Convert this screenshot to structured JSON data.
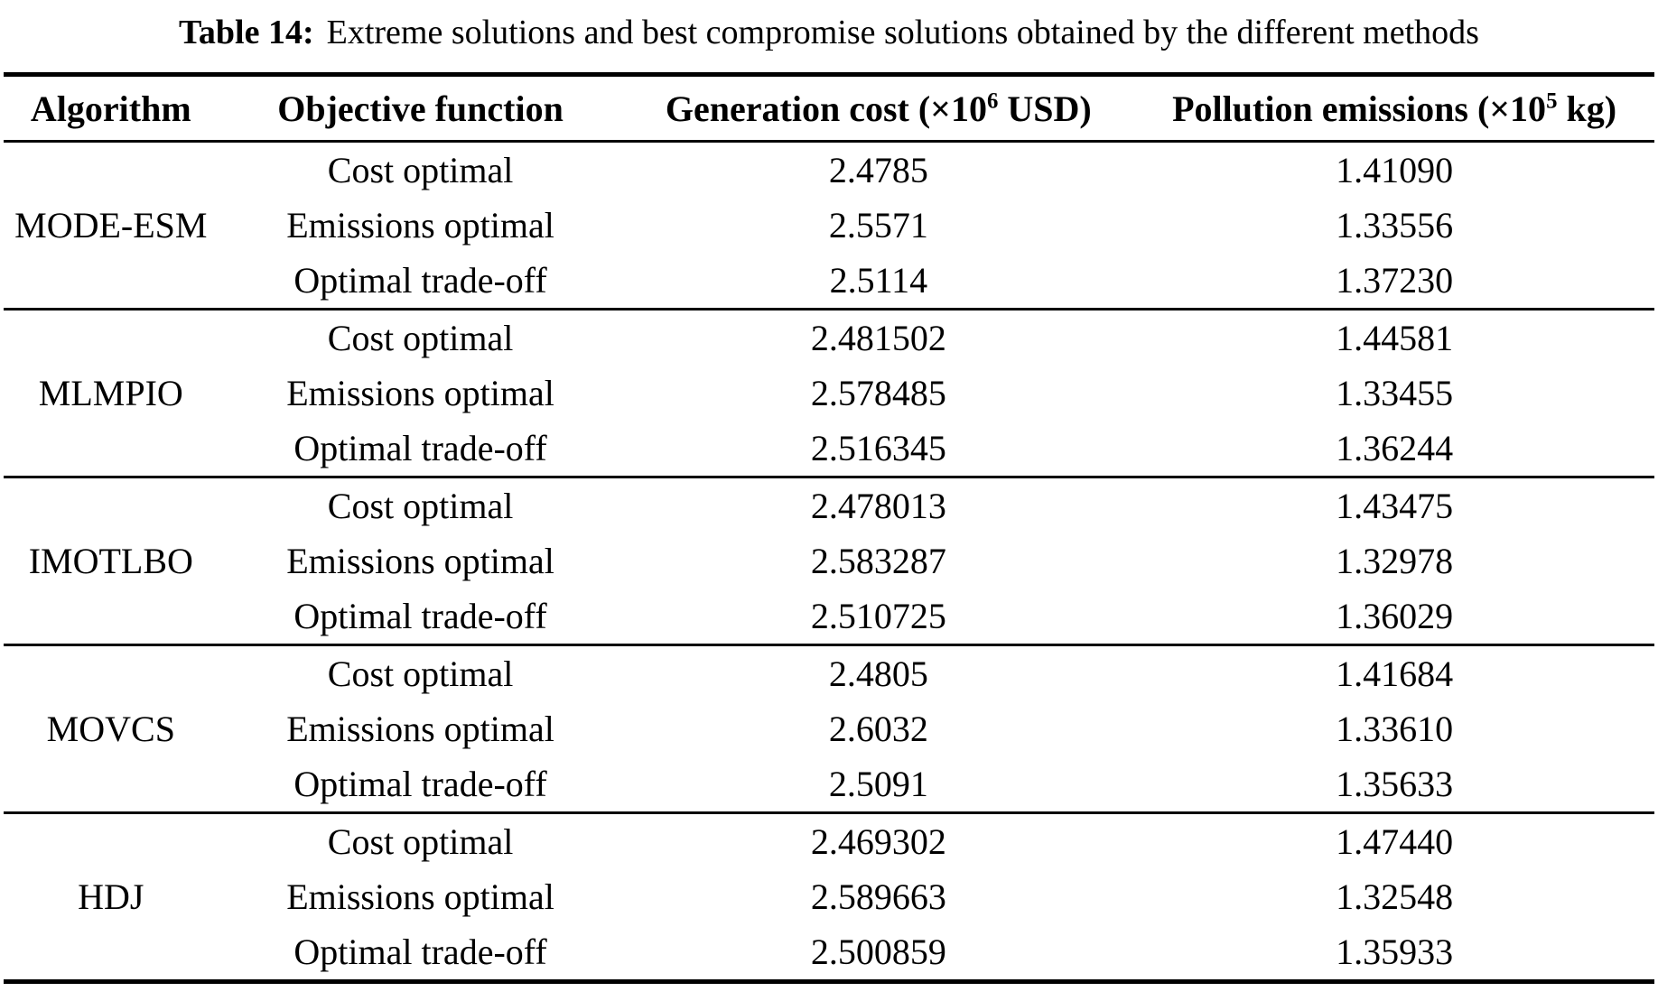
{
  "caption": {
    "label": "Table 14:",
    "text": "Extreme solutions and best compromise solutions obtained by the different methods"
  },
  "table": {
    "columns": {
      "algorithm": "Algorithm",
      "objective": "Objective function",
      "cost": {
        "prefix": "Generation cost (×10",
        "sup": "6",
        "suffix": " USD)"
      },
      "emissions": {
        "prefix": "Pollution emissions (×10",
        "sup": "5",
        "suffix": " kg)"
      }
    },
    "groups": [
      {
        "algorithm": "MODE-ESM",
        "rows": [
          {
            "objective": "Cost optimal",
            "cost": "2.4785",
            "emissions": "1.41090"
          },
          {
            "objective": "Emissions optimal",
            "cost": "2.5571",
            "emissions": "1.33556"
          },
          {
            "objective": "Optimal trade-off",
            "cost": "2.5114",
            "emissions": "1.37230"
          }
        ]
      },
      {
        "algorithm": "MLMPIO",
        "rows": [
          {
            "objective": "Cost optimal",
            "cost": "2.481502",
            "emissions": "1.44581"
          },
          {
            "objective": "Emissions optimal",
            "cost": "2.578485",
            "emissions": "1.33455"
          },
          {
            "objective": "Optimal trade-off",
            "cost": "2.516345",
            "emissions": "1.36244"
          }
        ]
      },
      {
        "algorithm": "IMOTLBO",
        "rows": [
          {
            "objective": "Cost optimal",
            "cost": "2.478013",
            "emissions": "1.43475"
          },
          {
            "objective": "Emissions optimal",
            "cost": "2.583287",
            "emissions": "1.32978"
          },
          {
            "objective": "Optimal trade-off",
            "cost": "2.510725",
            "emissions": "1.36029"
          }
        ]
      },
      {
        "algorithm": "MOVCS",
        "rows": [
          {
            "objective": "Cost optimal",
            "cost": "2.4805",
            "emissions": "1.41684"
          },
          {
            "objective": "Emissions optimal",
            "cost": "2.6032",
            "emissions": "1.33610"
          },
          {
            "objective": "Optimal trade-off",
            "cost": "2.5091",
            "emissions": "1.35633"
          }
        ]
      },
      {
        "algorithm": "HDJ",
        "rows": [
          {
            "objective": "Cost optimal",
            "cost": "2.469302",
            "emissions": "1.47440"
          },
          {
            "objective": "Emissions optimal",
            "cost": "2.589663",
            "emissions": "1.32548"
          },
          {
            "objective": "Optimal trade-off",
            "cost": "2.500859",
            "emissions": "1.35933"
          }
        ]
      }
    ]
  }
}
